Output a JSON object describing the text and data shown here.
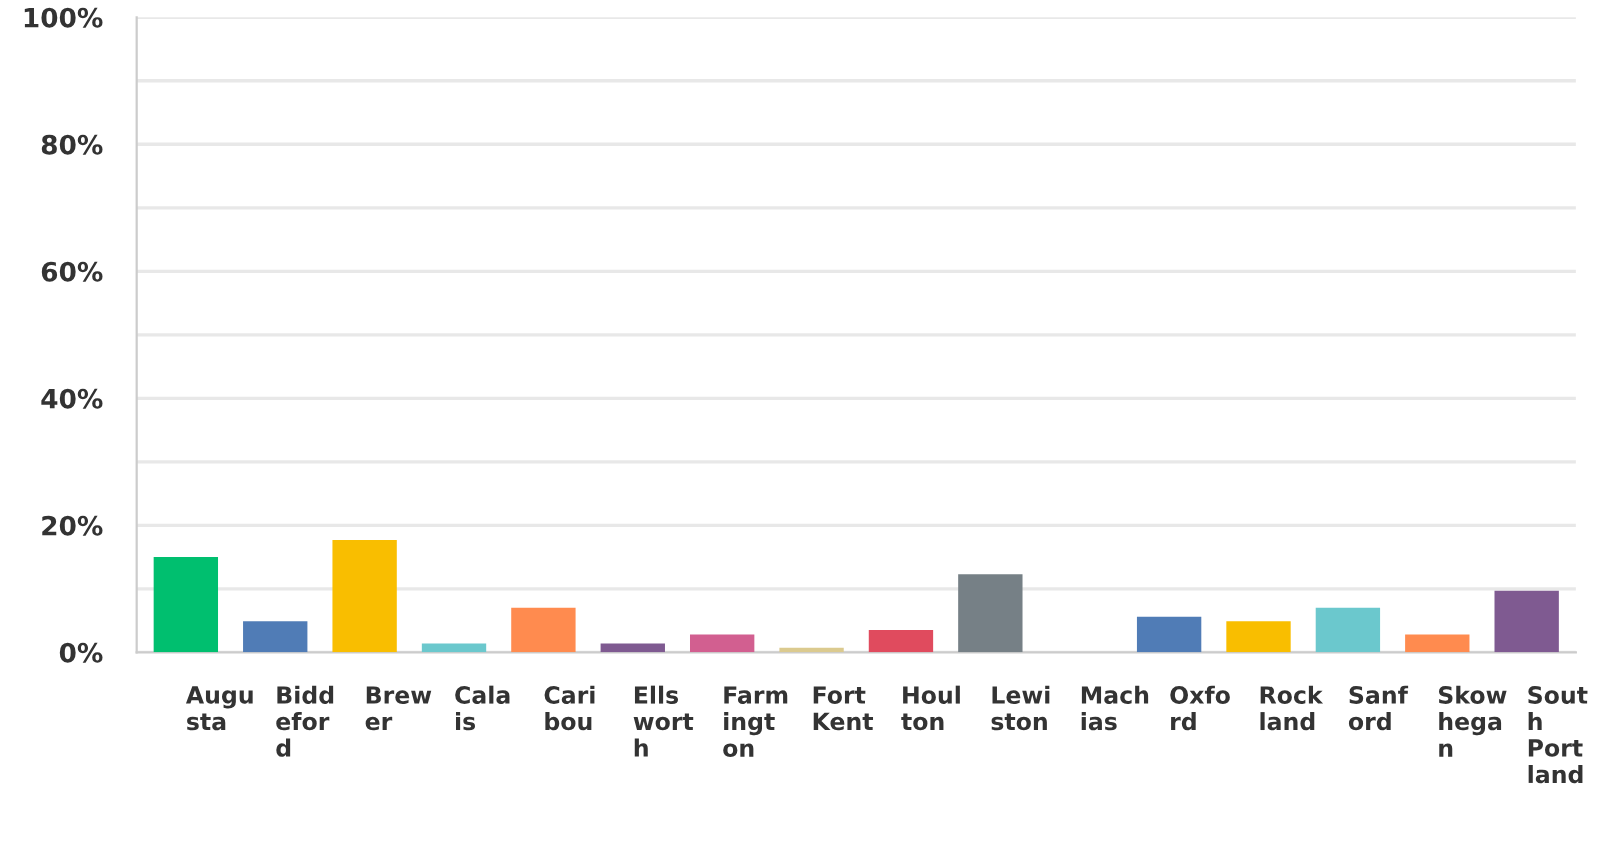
{
  "chart_data": {
    "type": "bar",
    "categories": [
      "Augusta",
      "Biddeford",
      "Brewer",
      "Calais",
      "Caribou",
      "Ellsworth",
      "Farmington",
      "Fort Kent",
      "Houlton",
      "Lewiston",
      "Machias",
      "Oxford",
      "Rockland",
      "Sanford",
      "Skowhegan",
      "South Portland"
    ],
    "values": [
      15.0,
      4.9,
      17.7,
      1.4,
      7.0,
      1.4,
      2.8,
      0.7,
      3.5,
      12.3,
      0,
      5.6,
      4.9,
      7.0,
      2.8,
      9.7
    ],
    "colors": [
      "#00bf6f",
      "#507cb6",
      "#f9be00",
      "#6bc8cd",
      "#ff8b4f",
      "#7f5a91",
      "#d25f90",
      "#dbca8f",
      "#e04b5e",
      "#768086",
      "#4f4f4f",
      "#507cb6",
      "#f9be00",
      "#6bc8cd",
      "#ff8b4f",
      "#7f5a91"
    ],
    "ylim": [
      0,
      100
    ],
    "yticks": [
      {
        "value": 0,
        "label": "0%"
      },
      {
        "value": 10,
        "label": null
      },
      {
        "value": 20,
        "label": "20%"
      },
      {
        "value": 30,
        "label": null
      },
      {
        "value": 40,
        "label": "40%"
      },
      {
        "value": 50,
        "label": null
      },
      {
        "value": 60,
        "label": "60%"
      },
      {
        "value": 70,
        "label": null
      },
      {
        "value": 80,
        "label": "80%"
      },
      {
        "value": 90,
        "label": null
      },
      {
        "value": 100,
        "label": "100%"
      }
    ],
    "grid": "y"
  }
}
